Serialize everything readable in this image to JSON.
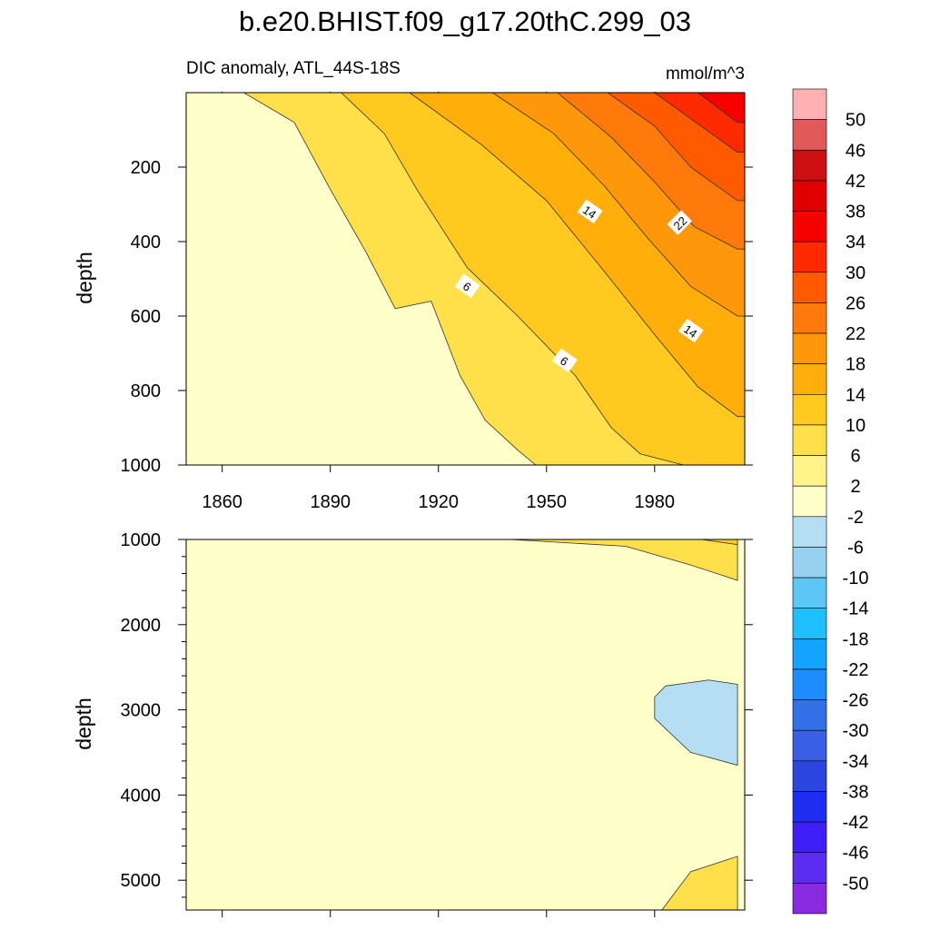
{
  "title": "b.e20.BHIST.f09_g17.20thC.299_03",
  "colors": {
    "levels": [
      "#8a2be2",
      "#5a2df0",
      "#3f1ef8",
      "#1f2df0",
      "#2b46e0",
      "#3a5fe6",
      "#3270e8",
      "#1e8cff",
      "#13a4ff",
      "#1ec0ff",
      "#5cc6f5",
      "#96d2f0",
      "#b5def2",
      "#ffffc9",
      "#fff38a",
      "#ffe04b",
      "#ffc91f",
      "#ffae0a",
      "#ff970b",
      "#ff7a0a",
      "#ff5a00",
      "#ff2a00",
      "#f70000",
      "#e00000",
      "#cc1010",
      "#e05a5a",
      "#ffb0b0"
    ]
  },
  "chart_data": [
    {
      "type": "heatmap",
      "subtitle": "DIC anomaly, ATL_44S-18S",
      "units": "mmol/m^3",
      "xlabel": "",
      "ylabel": "depth",
      "xlim": [
        1850,
        2005
      ],
      "ylim": [
        1000,
        0
      ],
      "xticks": [
        "1860",
        "1890",
        "1920",
        "1950",
        "1980"
      ],
      "yticks": [
        "200",
        "400",
        "600",
        "800",
        "1000"
      ],
      "contour_labels": [
        "14",
        "22",
        "6",
        "14",
        "6"
      ],
      "contour_boundaries": [
        {
          "level": 2,
          "points": [
            [
              1866,
              0
            ],
            [
              1880,
              80
            ],
            [
              1890,
              260
            ],
            [
              1900,
              430
            ],
            [
              1908,
              580
            ],
            [
              1918,
              560
            ],
            [
              1926,
              760
            ],
            [
              1933,
              880
            ],
            [
              1942,
              960
            ],
            [
              1947,
              1000
            ]
          ]
        },
        {
          "level": 6,
          "points": [
            [
              1893,
              0
            ],
            [
              1905,
              110
            ],
            [
              1914,
              260
            ],
            [
              1928,
              470
            ],
            [
              1942,
              600
            ],
            [
              1958,
              760
            ],
            [
              1968,
              900
            ],
            [
              1976,
              970
            ],
            [
              1988,
              1000
            ]
          ]
        },
        {
          "level": 10,
          "points": [
            [
              1912,
              0
            ],
            [
              1932,
              140
            ],
            [
              1950,
              290
            ],
            [
              1966,
              480
            ],
            [
              1980,
              650
            ],
            [
              1992,
              790
            ],
            [
              2003,
              870
            ]
          ]
        },
        {
          "level": 14,
          "points": [
            [
              1935,
              0
            ],
            [
              1952,
              110
            ],
            [
              1966,
              250
            ],
            [
              1978,
              390
            ],
            [
              1990,
              520
            ],
            [
              2003,
              600
            ]
          ]
        },
        {
          "level": 18,
          "points": [
            [
              1953,
              0
            ],
            [
              1968,
              120
            ],
            [
              1980,
              240
            ],
            [
              1991,
              360
            ],
            [
              2003,
              420
            ]
          ]
        },
        {
          "level": 22,
          "points": [
            [
              1967,
              0
            ],
            [
              1980,
              90
            ],
            [
              1990,
              200
            ],
            [
              2003,
              290
            ]
          ]
        },
        {
          "level": 26,
          "points": [
            [
              1980,
              0
            ],
            [
              1990,
              70
            ],
            [
              2003,
              160
            ]
          ]
        },
        {
          "level": 30,
          "points": [
            [
              1992,
              0
            ],
            [
              2003,
              80
            ]
          ]
        }
      ]
    },
    {
      "type": "heatmap",
      "xlabel": "",
      "ylabel": "depth",
      "xlim": [
        1850,
        2005
      ],
      "ylim": [
        5350,
        1000
      ],
      "yticks": [
        "1000",
        "2000",
        "3000",
        "4000",
        "5000"
      ],
      "regions": [
        {
          "level": 2,
          "points": [
            [
              1940,
              1000
            ],
            [
              1972,
              1080
            ],
            [
              1990,
              1300
            ],
            [
              2003,
              1480
            ],
            [
              2003,
              1000
            ]
          ]
        },
        {
          "level": 6,
          "points": [
            [
              1993,
              1000
            ],
            [
              2003,
              1060
            ],
            [
              2003,
              1000
            ]
          ]
        },
        {
          "level": -6,
          "points": [
            [
              1983,
              2720
            ],
            [
              1995,
              2650
            ],
            [
              2003,
              2700
            ],
            [
              2003,
              3650
            ],
            [
              1990,
              3500
            ],
            [
              1980,
              3100
            ],
            [
              1980,
              2850
            ]
          ]
        },
        {
          "level": 2,
          "points": [
            [
              1982,
              5350
            ],
            [
              1990,
              4900
            ],
            [
              2003,
              4720
            ],
            [
              2003,
              5350
            ]
          ]
        }
      ]
    }
  ],
  "colorbar": {
    "labels": [
      "50",
      "46",
      "42",
      "38",
      "34",
      "30",
      "26",
      "22",
      "18",
      "14",
      "10",
      "6",
      "2",
      "-2",
      "-6",
      "-10",
      "-14",
      "-18",
      "-22",
      "-26",
      "-30",
      "-34",
      "-38",
      "-42",
      "-46",
      "-50"
    ]
  }
}
